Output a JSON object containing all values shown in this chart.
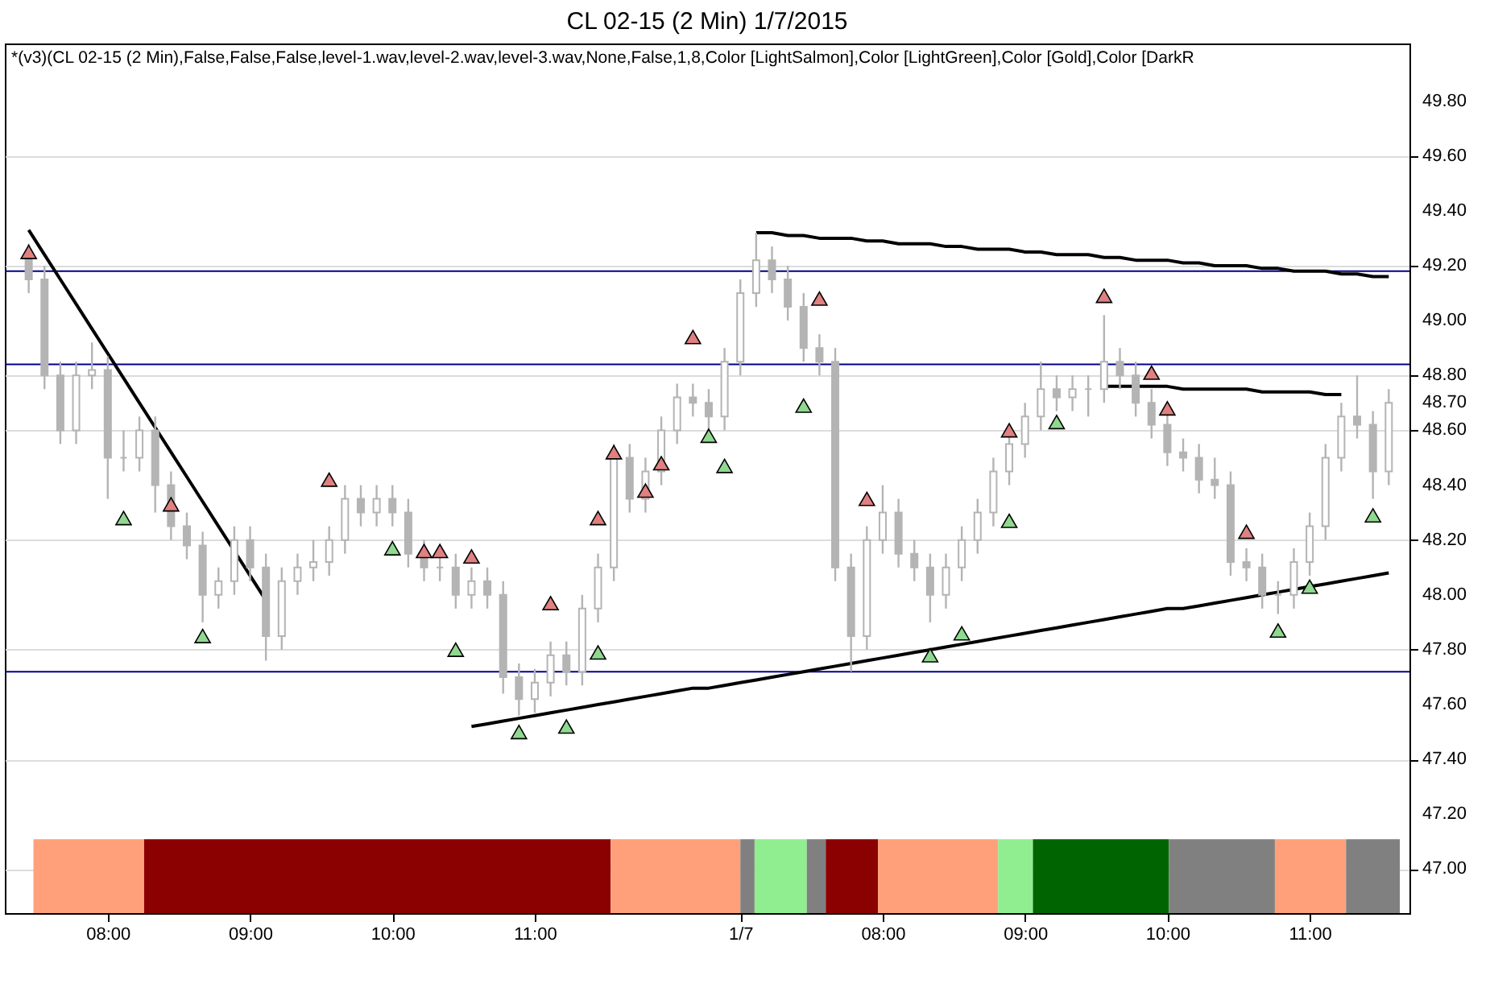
{
  "chart_data": {
    "type": "candlestick",
    "title": "CL 02-15 (2 Min)  1/7/2015",
    "annotations": [
      "*(v3)(CL 02-15 (2 Min),False,False,False,level-1.wav,level-2.wav,level-3.wav,None,False,1,8,Color [LightSalmon],Color [LightGreen],Color [Gold],Color [DarkR"
    ],
    "color": "#b4b4b4",
    "categories": [
      null,
      null,
      null,
      null,
      null,
      "08:00",
      null,
      null,
      null,
      null,
      null,
      null,
      null,
      null,
      "09:00",
      null,
      null,
      null,
      null,
      null,
      null,
      null,
      null,
      "10:00",
      null,
      null,
      null,
      null,
      null,
      null,
      null,
      null,
      "11:00",
      null,
      null,
      null,
      null,
      null,
      null,
      null,
      null,
      null,
      null,
      null,
      null,
      "1/7",
      null,
      null,
      null,
      null,
      null,
      null,
      null,
      null,
      "08:00",
      null,
      null,
      null,
      null,
      null,
      null,
      null,
      null,
      "09:00",
      null,
      null,
      null,
      null,
      null,
      null,
      null,
      null,
      "10:00",
      null,
      null,
      null,
      null,
      null,
      null,
      null,
      null,
      "11:00",
      null,
      null,
      null,
      null,
      null
    ],
    "ohlc": [
      [
        49.25,
        49.28,
        49.1,
        49.15
      ],
      [
        49.15,
        49.2,
        48.75,
        48.8
      ],
      [
        48.8,
        48.85,
        48.55,
        48.6
      ],
      [
        48.6,
        48.85,
        48.55,
        48.8
      ],
      [
        48.8,
        48.92,
        48.75,
        48.82
      ],
      [
        48.82,
        48.87,
        48.35,
        48.5
      ],
      [
        48.5,
        48.6,
        48.45,
        48.5
      ],
      [
        48.5,
        48.65,
        48.45,
        48.6
      ],
      [
        48.6,
        48.65,
        48.3,
        48.4
      ],
      [
        48.4,
        48.45,
        48.2,
        48.25
      ],
      [
        48.25,
        48.3,
        48.13,
        48.18
      ],
      [
        48.18,
        48.23,
        47.9,
        48.0
      ],
      [
        48.0,
        48.1,
        47.95,
        48.05
      ],
      [
        48.05,
        48.25,
        48.0,
        48.2
      ],
      [
        48.2,
        48.25,
        48.05,
        48.1
      ],
      [
        48.1,
        48.15,
        47.76,
        47.85
      ],
      [
        47.85,
        48.1,
        47.8,
        48.05
      ],
      [
        48.05,
        48.15,
        48.0,
        48.1
      ],
      [
        48.1,
        48.2,
        48.05,
        48.12
      ],
      [
        48.12,
        48.25,
        48.07,
        48.2
      ],
      [
        48.2,
        48.4,
        48.15,
        48.35
      ],
      [
        48.35,
        48.4,
        48.25,
        48.3
      ],
      [
        48.3,
        48.4,
        48.25,
        48.35
      ],
      [
        48.35,
        48.4,
        48.25,
        48.3
      ],
      [
        48.3,
        48.35,
        48.1,
        48.15
      ],
      [
        48.15,
        48.2,
        48.05,
        48.1
      ],
      [
        48.1,
        48.15,
        48.05,
        48.1
      ],
      [
        48.1,
        48.15,
        47.95,
        48.0
      ],
      [
        48.0,
        48.1,
        47.95,
        48.05
      ],
      [
        48.05,
        48.1,
        47.95,
        48.0
      ],
      [
        48.0,
        48.05,
        47.64,
        47.7
      ],
      [
        47.7,
        47.75,
        47.56,
        47.62
      ],
      [
        47.62,
        47.73,
        47.57,
        47.68
      ],
      [
        47.68,
        47.83,
        47.63,
        47.78
      ],
      [
        47.78,
        47.83,
        47.67,
        47.72
      ],
      [
        47.72,
        48.0,
        47.67,
        47.95
      ],
      [
        47.95,
        48.15,
        47.9,
        48.1
      ],
      [
        48.1,
        48.55,
        48.05,
        48.5
      ],
      [
        48.5,
        48.55,
        48.3,
        48.35
      ],
      [
        48.35,
        48.5,
        48.3,
        48.45
      ],
      [
        48.45,
        48.65,
        48.4,
        48.6
      ],
      [
        48.6,
        48.77,
        48.55,
        48.72
      ],
      [
        48.72,
        48.77,
        48.65,
        48.7
      ],
      [
        48.7,
        48.75,
        48.6,
        48.65
      ],
      [
        48.65,
        48.9,
        48.6,
        48.85
      ],
      [
        48.85,
        49.15,
        48.8,
        49.1
      ],
      [
        49.1,
        49.32,
        49.05,
        49.22
      ],
      [
        49.22,
        49.27,
        49.1,
        49.15
      ],
      [
        49.15,
        49.2,
        49.0,
        49.05
      ],
      [
        49.05,
        49.1,
        48.85,
        48.9
      ],
      [
        48.9,
        48.95,
        48.8,
        48.85
      ],
      [
        48.85,
        48.9,
        48.05,
        48.1
      ],
      [
        48.1,
        48.15,
        47.72,
        47.85
      ],
      [
        47.85,
        48.25,
        47.8,
        48.2
      ],
      [
        48.2,
        48.4,
        48.15,
        48.3
      ],
      [
        48.3,
        48.35,
        48.1,
        48.15
      ],
      [
        48.15,
        48.2,
        48.05,
        48.1
      ],
      [
        48.1,
        48.15,
        47.9,
        48.0
      ],
      [
        48.0,
        48.15,
        47.95,
        48.1
      ],
      [
        48.1,
        48.25,
        48.05,
        48.2
      ],
      [
        48.2,
        48.35,
        48.15,
        48.3
      ],
      [
        48.3,
        48.5,
        48.25,
        48.45
      ],
      [
        48.45,
        48.6,
        48.4,
        48.55
      ],
      [
        48.55,
        48.7,
        48.5,
        48.65
      ],
      [
        48.65,
        48.85,
        48.6,
        48.75
      ],
      [
        48.75,
        48.8,
        48.67,
        48.72
      ],
      [
        48.72,
        48.8,
        48.67,
        48.75
      ],
      [
        48.75,
        48.8,
        48.65,
        48.75
      ],
      [
        48.75,
        49.02,
        48.7,
        48.85
      ],
      [
        48.85,
        48.9,
        48.75,
        48.8
      ],
      [
        48.8,
        48.85,
        48.65,
        48.7
      ],
      [
        48.7,
        48.75,
        48.57,
        48.62
      ],
      [
        48.62,
        48.67,
        48.47,
        48.52
      ],
      [
        48.52,
        48.57,
        48.45,
        48.5
      ],
      [
        48.5,
        48.55,
        48.37,
        48.42
      ],
      [
        48.42,
        48.5,
        48.35,
        48.4
      ],
      [
        48.4,
        48.45,
        48.07,
        48.12
      ],
      [
        48.12,
        48.17,
        48.05,
        48.1
      ],
      [
        48.1,
        48.15,
        47.95,
        48.0
      ],
      [
        48.0,
        48.05,
        47.93,
        48.0
      ],
      [
        48.0,
        48.17,
        47.95,
        48.12
      ],
      [
        48.12,
        48.3,
        48.07,
        48.25
      ],
      [
        48.25,
        48.55,
        48.2,
        48.5
      ],
      [
        48.5,
        48.7,
        48.45,
        48.65
      ],
      [
        48.65,
        48.8,
        48.57,
        48.62
      ],
      [
        48.62,
        48.67,
        48.35,
        48.45
      ],
      [
        48.45,
        48.75,
        48.4,
        48.7
      ]
    ],
    "series": [
      {
        "type": "line",
        "color": "#000000",
        "values": [
          49.33,
          49.24,
          49.15,
          49.06,
          48.97,
          48.88,
          48.79,
          48.7,
          48.61,
          48.52,
          48.43,
          48.34,
          48.25,
          48.16,
          48.07,
          47.98,
          null,
          null,
          null,
          null,
          null,
          null,
          null,
          null,
          null,
          null,
          null,
          null,
          null,
          null,
          null,
          null,
          null,
          null,
          null,
          null,
          null,
          null,
          null,
          null,
          null,
          null,
          null,
          null,
          null,
          null,
          null,
          null,
          null,
          null,
          null,
          null,
          null,
          null,
          null,
          null,
          null,
          null,
          null,
          null,
          null,
          null,
          null,
          null,
          null,
          null,
          null,
          null,
          null,
          null,
          null,
          null,
          null,
          null,
          null,
          null,
          null,
          null,
          null,
          null,
          null,
          null,
          null,
          null,
          null,
          null,
          null
        ]
      },
      {
        "type": "line",
        "color": "#000000",
        "values": [
          null,
          null,
          null,
          null,
          null,
          null,
          null,
          null,
          null,
          null,
          null,
          null,
          null,
          null,
          null,
          null,
          null,
          null,
          null,
          null,
          null,
          null,
          null,
          null,
          null,
          null,
          null,
          null,
          47.52,
          47.53,
          47.54,
          47.55,
          47.56,
          47.57,
          47.58,
          47.59,
          47.6,
          47.61,
          47.62,
          47.63,
          47.64,
          47.65,
          47.66,
          47.66,
          47.67,
          47.68,
          47.69,
          47.7,
          47.71,
          47.72,
          47.73,
          47.74,
          47.75,
          47.76,
          47.77,
          47.78,
          47.79,
          47.8,
          47.81,
          47.82,
          47.83,
          47.84,
          47.85,
          47.86,
          47.87,
          47.88,
          47.89,
          47.9,
          47.91,
          47.92,
          47.93,
          47.94,
          47.95,
          47.95,
          47.96,
          47.97,
          47.98,
          47.99,
          48.0,
          48.01,
          48.02,
          48.03,
          48.04,
          48.05,
          48.06,
          48.07,
          48.08
        ]
      },
      {
        "type": "line",
        "color": "#000000",
        "values": [
          null,
          null,
          null,
          null,
          null,
          null,
          null,
          null,
          null,
          null,
          null,
          null,
          null,
          null,
          null,
          null,
          null,
          null,
          null,
          null,
          null,
          null,
          null,
          null,
          null,
          null,
          null,
          null,
          null,
          null,
          null,
          null,
          null,
          null,
          null,
          null,
          null,
          null,
          null,
          null,
          null,
          null,
          null,
          null,
          null,
          null,
          49.32,
          49.32,
          49.31,
          49.31,
          49.3,
          49.3,
          49.3,
          49.29,
          49.29,
          49.28,
          49.28,
          49.28,
          49.27,
          49.27,
          49.26,
          49.26,
          49.26,
          49.25,
          49.25,
          49.24,
          49.24,
          49.24,
          49.23,
          49.23,
          49.22,
          49.22,
          49.22,
          49.21,
          49.21,
          49.2,
          49.2,
          49.2,
          49.19,
          49.19,
          49.18,
          49.18,
          49.18,
          49.17,
          49.17,
          49.16,
          49.16
        ]
      },
      {
        "type": "line",
        "color": "#000000",
        "values": [
          null,
          null,
          null,
          null,
          null,
          null,
          null,
          null,
          null,
          null,
          null,
          null,
          null,
          null,
          null,
          null,
          null,
          null,
          null,
          null,
          null,
          null,
          null,
          null,
          null,
          null,
          null,
          null,
          null,
          null,
          null,
          null,
          null,
          null,
          null,
          null,
          null,
          null,
          null,
          null,
          null,
          null,
          null,
          null,
          null,
          null,
          null,
          null,
          null,
          null,
          null,
          null,
          null,
          null,
          null,
          null,
          null,
          null,
          null,
          null,
          null,
          null,
          null,
          null,
          null,
          null,
          null,
          null,
          48.76,
          48.76,
          48.76,
          48.76,
          48.76,
          48.75,
          48.75,
          48.75,
          48.75,
          48.75,
          48.74,
          48.74,
          48.74,
          48.74,
          48.73,
          48.73,
          null,
          null,
          null
        ]
      },
      {
        "type": "scatter",
        "marker": "triangle",
        "color": "#e08080",
        "values": [
          49.25,
          null,
          null,
          null,
          null,
          null,
          null,
          null,
          null,
          48.33,
          null,
          null,
          null,
          null,
          null,
          null,
          null,
          null,
          null,
          48.42,
          null,
          null,
          null,
          null,
          null,
          48.16,
          48.16,
          null,
          48.14,
          null,
          null,
          null,
          null,
          47.97,
          null,
          null,
          48.28,
          48.52,
          null,
          48.38,
          48.48,
          null,
          48.94,
          null,
          null,
          null,
          null,
          null,
          null,
          null,
          49.08,
          null,
          null,
          48.35,
          null,
          null,
          null,
          null,
          null,
          null,
          null,
          null,
          48.6,
          null,
          null,
          null,
          null,
          null,
          49.09,
          null,
          null,
          48.81,
          48.68,
          null,
          null,
          null,
          null,
          48.23,
          null,
          null,
          null,
          null,
          null,
          null,
          null,
          null,
          null
        ]
      },
      {
        "type": "scatter",
        "marker": "triangle",
        "color": "#90d890",
        "values": [
          null,
          null,
          null,
          null,
          null,
          null,
          48.28,
          null,
          null,
          null,
          null,
          47.85,
          null,
          null,
          null,
          null,
          null,
          null,
          null,
          null,
          null,
          null,
          null,
          48.17,
          null,
          null,
          null,
          47.8,
          null,
          null,
          null,
          47.5,
          null,
          null,
          47.52,
          null,
          47.79,
          null,
          null,
          null,
          null,
          null,
          null,
          48.58,
          48.47,
          null,
          null,
          null,
          null,
          48.69,
          null,
          null,
          null,
          null,
          null,
          null,
          null,
          47.78,
          null,
          47.86,
          null,
          null,
          48.27,
          null,
          null,
          48.63,
          null,
          null,
          null,
          null,
          null,
          null,
          null,
          null,
          null,
          null,
          null,
          null,
          null,
          47.87,
          null,
          48.03,
          null,
          null,
          null,
          48.29,
          null
        ]
      }
    ],
    "ylim": [
      46.84,
      50.01
    ],
    "yticks": [
      {
        "value": 47,
        "label": "47.00"
      },
      {
        "value": 47.2,
        "label": "47.20"
      },
      {
        "value": 47.4,
        "label": "47.40"
      },
      {
        "value": 47.6,
        "label": "47.60"
      },
      {
        "value": 47.8,
        "label": "47.80"
      },
      {
        "value": 48,
        "label": "48.00"
      },
      {
        "value": 48.2,
        "label": "48.20"
      },
      {
        "value": 48.4,
        "label": "48.40"
      },
      {
        "value": 48.6,
        "label": "48.60"
      },
      {
        "value": 48.7,
        "label": "48.70"
      },
      {
        "value": 48.8,
        "label": "48.80"
      },
      {
        "value": 49,
        "label": "49.00"
      },
      {
        "value": 49.2,
        "label": "49.20"
      },
      {
        "value": 49.4,
        "label": "49.40"
      },
      {
        "value": 49.6,
        "label": "49.60"
      },
      {
        "value": 49.8,
        "label": "49.80"
      }
    ],
    "grid": "y",
    "ref_lines": [
      {
        "axis": "y",
        "value": 49.18,
        "color": "#00008b"
      },
      {
        "axis": "y",
        "value": 48.84,
        "color": "#00008b"
      },
      {
        "axis": "y",
        "value": 47.72,
        "color": "#00008b"
      }
    ]
  }
}
